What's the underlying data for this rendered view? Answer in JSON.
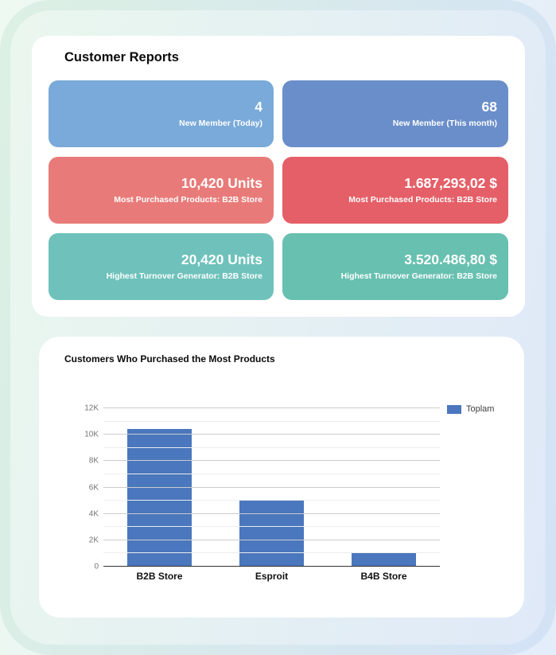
{
  "background": {
    "gradient_left": "#e7f6ec",
    "gradient_right": "#d9e5f7"
  },
  "report_panel": {
    "title": "Customer Reports",
    "stats": [
      {
        "value": "4",
        "label": "New Member (Today)",
        "color": "#79aad9"
      },
      {
        "value": "68",
        "label": "New Member (This month)",
        "color": "#6a8ec9"
      },
      {
        "value": "10,420 Units",
        "label": "Most Purchased Products: B2B Store",
        "color": "#e87b79"
      },
      {
        "value": "1.687,293,02 $",
        "label": "Most Purchased Products: B2B Store",
        "color": "#e55f68"
      },
      {
        "value": "20,420 Units",
        "label": "Highest Turnover Generator: B2B Store",
        "color": "#6fc2bb"
      },
      {
        "value": "3.520.486,80 $",
        "label": "Highest Turnover Generator: B2B Store",
        "color": "#68c0b0"
      }
    ]
  },
  "chart_panel": {
    "title": "Customers Who Purchased the Most Products"
  },
  "chart_data": {
    "type": "bar",
    "title": "Customers Who Purchased the Most Products",
    "categories": [
      "B2B Store",
      "Esproit",
      "B4B Store"
    ],
    "series": [
      {
        "name": "Toplam",
        "color": "#4a77bd",
        "values": [
          10420,
          5000,
          1050
        ]
      }
    ],
    "xlabel": "",
    "ylabel": "",
    "ylim": [
      0,
      12000
    ],
    "ytick_labels": [
      "0",
      "2K",
      "4K",
      "6K",
      "8K",
      "10K",
      "12K"
    ],
    "minor_gridlines": true,
    "grid": true,
    "legend_position": "top-right",
    "axis_color": "#333333",
    "gridline_color": "#cccccc",
    "minor_gridline_color": "#ededed",
    "tick_label_color": "#757575"
  }
}
